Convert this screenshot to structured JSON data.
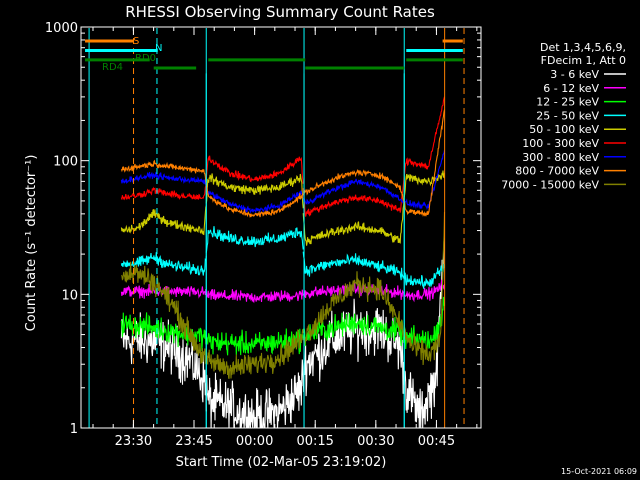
{
  "chart_data": {
    "type": "line",
    "title": "RHESSI Observing Summary Count Rates",
    "xlabel": "Start Time (02-Mar-05 23:19:02)",
    "ylabel": "Count Rate (s⁻¹ detector⁻¹)",
    "yscale": "log",
    "ylim": [
      1,
      1000
    ],
    "xlim_minutes": [
      -2,
      97
    ],
    "x_tick_positions_minutes": [
      10.97,
      25.97,
      40.97,
      55.97,
      70.97,
      85.97
    ],
    "x_ticks": [
      "23:30",
      "23:45",
      "00:00",
      "00:15",
      "00:30",
      "00:45"
    ],
    "y_ticks": [
      "1",
      "10",
      "100",
      "1000"
    ],
    "y_tick_values": [
      1,
      10,
      100,
      1000
    ],
    "grid": false,
    "legend_position": "right",
    "legend_header": [
      "Det 1,3,4,5,6,9,",
      "FDecim 1, Att 0"
    ],
    "timestamp": "15-Oct-2021 06:09",
    "flags": [
      {
        "label": "S",
        "color": "#ff8000",
        "level": 1.0,
        "segments": [
          [
            -1,
            11.0
          ],
          [
            87.5,
            92.5
          ]
        ]
      },
      {
        "label": "N",
        "color": "#00ffff",
        "level": 0.86,
        "segments": [
          [
            -1,
            17.0
          ],
          [
            78.5,
            92.5
          ]
        ]
      },
      {
        "label": "RD0",
        "color": "#008000",
        "level": 0.72,
        "segments": [
          [
            -1,
            15.0
          ],
          [
            29.5,
            53.5
          ],
          [
            78.5,
            92.5
          ]
        ]
      },
      {
        "label": "RD4",
        "color": "#008000",
        "level": 0.6,
        "segments": [
          [
            16.0,
            26.5
          ],
          [
            53.5,
            78.0
          ]
        ]
      }
    ],
    "vlines": [
      {
        "x": 0.0,
        "color": "#00ffff",
        "dash": false
      },
      {
        "x": 11.0,
        "color": "#ff8000",
        "dash": true
      },
      {
        "x": 16.8,
        "color": "#00ffff",
        "dash": true
      },
      {
        "x": 29.0,
        "color": "#00ffff",
        "dash": false
      },
      {
        "x": 53.2,
        "color": "#00ffff",
        "dash": false
      },
      {
        "x": 78.0,
        "color": "#00ffff",
        "dash": false
      },
      {
        "x": 88.0,
        "color": "#ff8000",
        "dash": false
      },
      {
        "x": 92.8,
        "color": "#ff8000",
        "dash": true
      }
    ],
    "gap_segments": [
      [
        8,
        29
      ],
      [
        29,
        53
      ],
      [
        53,
        78
      ],
      [
        78,
        88
      ]
    ],
    "series": [
      {
        "name": "3 - 6 keV",
        "color": "#ffffff",
        "noise": 0.22,
        "points": [
          [
            8,
            4.5
          ],
          [
            15,
            4.5
          ],
          [
            20,
            4.0
          ],
          [
            25,
            3.2
          ],
          [
            28.5,
            2.3
          ],
          [
            29.5,
            1.6
          ],
          [
            35,
            1.4
          ],
          [
            41,
            1.2
          ],
          [
            47,
            1.3
          ],
          [
            52.5,
            2.0
          ],
          [
            53.5,
            3.0
          ],
          [
            60,
            4.5
          ],
          [
            66,
            5.5
          ],
          [
            72,
            5.5
          ],
          [
            77,
            4.0
          ],
          [
            78.5,
            2.0
          ],
          [
            82,
            1.2
          ],
          [
            86,
            2.5
          ],
          [
            88,
            35
          ]
        ]
      },
      {
        "name": "6 - 12 keV",
        "color": "#ff00ff",
        "noise": 0.05,
        "points": [
          [
            8,
            10.5
          ],
          [
            15,
            10.5
          ],
          [
            20,
            10.5
          ],
          [
            28.5,
            10.3
          ],
          [
            29.5,
            9.8
          ],
          [
            41,
            9.5
          ],
          [
            52.5,
            9.8
          ],
          [
            53.5,
            10.2
          ],
          [
            66,
            11.0
          ],
          [
            77,
            10.3
          ],
          [
            78.5,
            9.8
          ],
          [
            85,
            10.2
          ],
          [
            88,
            12.0
          ]
        ]
      },
      {
        "name": "12 - 25 keV",
        "color": "#00ff00",
        "noise": 0.1,
        "points": [
          [
            8,
            6.0
          ],
          [
            15,
            5.7
          ],
          [
            20,
            5.3
          ],
          [
            28.5,
            4.8
          ],
          [
            29.5,
            4.4
          ],
          [
            41,
            4.2
          ],
          [
            52.5,
            4.6
          ],
          [
            53.5,
            5.0
          ],
          [
            66,
            6.2
          ],
          [
            77,
            5.2
          ],
          [
            78.5,
            4.7
          ],
          [
            85,
            4.5
          ],
          [
            88,
            8.0
          ]
        ]
      },
      {
        "name": "25 - 50 keV",
        "color": "#00ffff",
        "noise": 0.05,
        "points": [
          [
            8,
            17.0
          ],
          [
            12,
            17.0
          ],
          [
            16,
            19.0
          ],
          [
            20,
            16.5
          ],
          [
            28.5,
            15.0
          ],
          [
            29.5,
            30.0
          ],
          [
            35,
            26.0
          ],
          [
            41,
            25.0
          ],
          [
            47,
            26.0
          ],
          [
            52.5,
            30.0
          ],
          [
            53.5,
            15.0
          ],
          [
            60,
            17.0
          ],
          [
            66,
            18.0
          ],
          [
            72,
            16.0
          ],
          [
            77,
            14.5
          ],
          [
            78.5,
            13.0
          ],
          [
            84,
            12.0
          ],
          [
            88,
            16.0
          ]
        ]
      },
      {
        "name": "50 - 100 keV",
        "color": "#cccc00",
        "noise": 0.04,
        "points": [
          [
            8,
            30.0
          ],
          [
            12,
            31.0
          ],
          [
            16,
            40.0
          ],
          [
            20,
            34.0
          ],
          [
            28.5,
            30.0
          ],
          [
            29.5,
            75.0
          ],
          [
            35,
            63.0
          ],
          [
            41,
            60.0
          ],
          [
            47,
            63.0
          ],
          [
            52.5,
            75.0
          ],
          [
            53.5,
            25.0
          ],
          [
            60,
            29.0
          ],
          [
            66,
            32.0
          ],
          [
            72,
            30.0
          ],
          [
            77,
            25.0
          ],
          [
            78.5,
            75.0
          ],
          [
            84,
            70.0
          ],
          [
            88,
            80.0
          ]
        ]
      },
      {
        "name": "100 - 300 keV",
        "color": "#ff0000",
        "noise": 0.03,
        "points": [
          [
            8,
            53.0
          ],
          [
            12,
            55.0
          ],
          [
            16,
            60.0
          ],
          [
            20,
            56.0
          ],
          [
            28.5,
            52.0
          ],
          [
            29.5,
            105.0
          ],
          [
            35,
            80.0
          ],
          [
            41,
            72.0
          ],
          [
            47,
            80.0
          ],
          [
            52.5,
            105.0
          ],
          [
            53.5,
            40.0
          ],
          [
            60,
            48.0
          ],
          [
            66,
            53.0
          ],
          [
            72,
            50.0
          ],
          [
            77,
            42.0
          ],
          [
            78.5,
            100.0
          ],
          [
            84,
            90.0
          ],
          [
            88,
            300.0
          ]
        ]
      },
      {
        "name": "300 - 800 keV",
        "color": "#0000ff",
        "noise": 0.025,
        "points": [
          [
            8,
            70.0
          ],
          [
            12,
            74.0
          ],
          [
            16,
            78.0
          ],
          [
            20,
            74.0
          ],
          [
            28.5,
            70.0
          ],
          [
            29.5,
            58.0
          ],
          [
            35,
            47.0
          ],
          [
            41,
            42.0
          ],
          [
            47,
            46.0
          ],
          [
            52.5,
            58.0
          ],
          [
            53.5,
            48.0
          ],
          [
            60,
            60.0
          ],
          [
            66,
            70.0
          ],
          [
            72,
            64.0
          ],
          [
            77,
            52.0
          ],
          [
            78.5,
            48.0
          ],
          [
            84,
            45.0
          ],
          [
            88,
            120.0
          ]
        ]
      },
      {
        "name": "800 - 7000 keV",
        "color": "#ff8000",
        "noise": 0.025,
        "points": [
          [
            8,
            86.0
          ],
          [
            12,
            90.0
          ],
          [
            16,
            95.0
          ],
          [
            20,
            90.0
          ],
          [
            28.5,
            84.0
          ],
          [
            29.5,
            54.0
          ],
          [
            35,
            43.0
          ],
          [
            41,
            39.0
          ],
          [
            47,
            42.0
          ],
          [
            52.5,
            54.0
          ],
          [
            53.5,
            58.0
          ],
          [
            60,
            72.0
          ],
          [
            66,
            82.0
          ],
          [
            72,
            78.0
          ],
          [
            77,
            63.0
          ],
          [
            78.5,
            42.0
          ],
          [
            84,
            40.0
          ],
          [
            88,
            250.0
          ]
        ]
      },
      {
        "name": "7000 - 15000 keV",
        "color": "#808000",
        "noise": 0.1,
        "points": [
          [
            8,
            14.0
          ],
          [
            12,
            14.5
          ],
          [
            16,
            12.5
          ],
          [
            20,
            9.0
          ],
          [
            25,
            5.0
          ],
          [
            29,
            3.2
          ],
          [
            35,
            2.8
          ],
          [
            41,
            3.0
          ],
          [
            47,
            3.4
          ],
          [
            52,
            4.5
          ],
          [
            56,
            6.0
          ],
          [
            60,
            8.5
          ],
          [
            66,
            12.0
          ],
          [
            72,
            11.0
          ],
          [
            77,
            6.0
          ],
          [
            80,
            4.0
          ],
          [
            84,
            3.5
          ],
          [
            87,
            4.5
          ],
          [
            88,
            40.0
          ]
        ]
      }
    ]
  }
}
